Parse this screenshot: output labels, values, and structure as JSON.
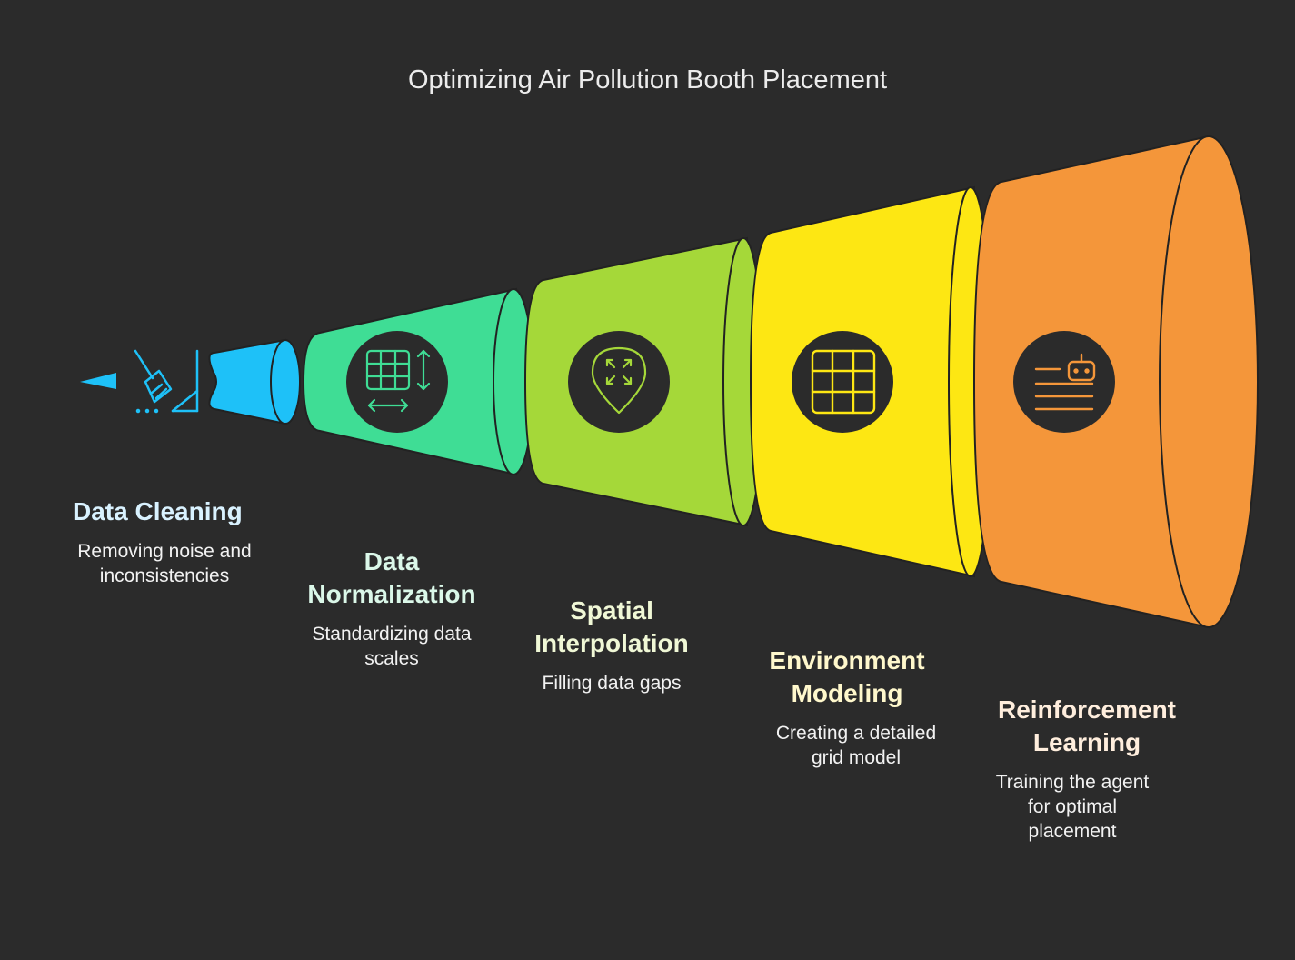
{
  "title": "Optimizing Air Pollution Booth Placement",
  "stages": [
    {
      "name": "Data Cleaning",
      "description": "Removing noise and inconsistencies",
      "color": "#1ec1f8",
      "label_color": "#d9f2ff",
      "icon": "broom-icon"
    },
    {
      "name": "Data Normalization",
      "description": "Standardizing data scales",
      "color": "#3fdd95",
      "label_color": "#dbf8e9",
      "icon": "table-resize-icon"
    },
    {
      "name": "Spatial Interpolation",
      "description": "Filling data gaps",
      "color": "#a5d839",
      "label_color": "#f0f8d6",
      "icon": "map-pin-expand-icon"
    },
    {
      "name": "Environment Modeling",
      "description": "Creating a detailed grid model",
      "color": "#fde713",
      "label_color": "#fff8cc",
      "icon": "grid-icon"
    },
    {
      "name": "Reinforcement Learning",
      "description": "Training the agent for optimal placement",
      "color": "#f4963a",
      "label_color": "#ffeedd",
      "icon": "robot-text-icon"
    }
  ]
}
